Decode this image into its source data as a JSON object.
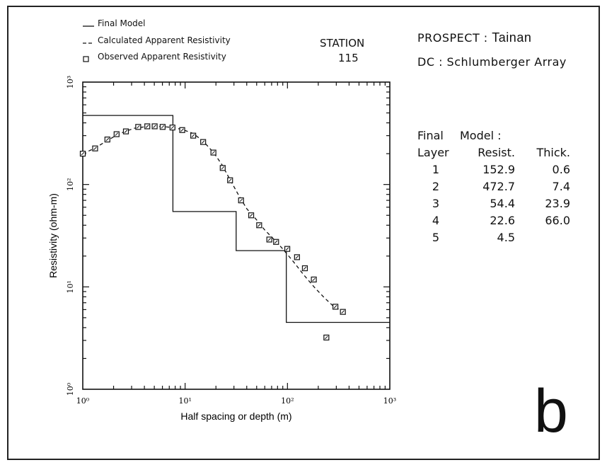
{
  "legend": [
    {
      "symbol": "solid-line",
      "label": "Final Model"
    },
    {
      "symbol": "dashed-line",
      "label": "Calculated Apparent Resistivity"
    },
    {
      "symbol": "square-marker",
      "label": "Observed Apparent Resistivity"
    }
  ],
  "station": {
    "label": "STATION",
    "number": "115"
  },
  "prospect": {
    "label": "PROSPECT :",
    "name": "Tainan"
  },
  "array": "DC : Schlumberger Array",
  "model_table": {
    "caption_left": "Final",
    "caption_right": "Model :",
    "headers": [
      "Layer",
      "Resist.",
      "Thick."
    ],
    "rows": [
      [
        "1",
        "152.9",
        "0.6"
      ],
      [
        "2",
        "472.7",
        "7.4"
      ],
      [
        "3",
        "54.4",
        "23.9"
      ],
      [
        "4",
        "22.6",
        "66.0"
      ],
      [
        "5",
        "4.5",
        ""
      ]
    ]
  },
  "figure_letter": "b",
  "chart_data": {
    "type": "line",
    "xlabel": "Half spacing or depth (m)",
    "ylabel": "Resistivity  (ohm-m)",
    "xscale": "log",
    "yscale": "log",
    "xlim": [
      1,
      1000
    ],
    "ylim": [
      1,
      1000
    ],
    "x_ticks": [
      {
        "value": 1,
        "label": "10⁰"
      },
      {
        "value": 10,
        "label": "10¹"
      },
      {
        "value": 100,
        "label": "10²"
      },
      {
        "value": 1000,
        "label": "10³"
      }
    ],
    "y_ticks": [
      {
        "value": 1,
        "label": "10⁰"
      },
      {
        "value": 10,
        "label": "10¹"
      },
      {
        "value": 100,
        "label": "10²"
      },
      {
        "value": 1000,
        "label": "10³"
      }
    ],
    "grid": false,
    "series": [
      {
        "name": "Final Model",
        "style": "solid-step",
        "x": [
          1,
          7.6,
          7.6,
          31.5,
          31.5,
          97.5,
          97.5,
          1000
        ],
        "y": [
          472.7,
          472.7,
          54.4,
          54.4,
          22.6,
          22.6,
          4.5,
          4.5
        ]
      },
      {
        "name": "Calculated Apparent Resistivity",
        "style": "dashed",
        "x": [
          1,
          1.3,
          1.7,
          2.1,
          2.5,
          3.2,
          4,
          5,
          6,
          7.6,
          9.4,
          12,
          15,
          19,
          23,
          27,
          33,
          40,
          50,
          60,
          74,
          90,
          115,
          145,
          185,
          230,
          280,
          330
        ],
        "y": [
          200,
          225,
          265,
          300,
          325,
          355,
          365,
          370,
          368,
          360,
          345,
          315,
          265,
          205,
          155,
          115,
          80,
          58,
          45,
          36,
          29,
          23.5,
          17.5,
          13,
          9.8,
          7.8,
          6.5,
          5.9
        ]
      },
      {
        "name": "Observed Apparent Resistivity",
        "style": "markers",
        "x": [
          1,
          1.32,
          1.74,
          2.14,
          2.64,
          3.48,
          4.27,
          5.04,
          6.03,
          7.52,
          9.37,
          12,
          15,
          18.9,
          23.3,
          27.5,
          35.2,
          44.2,
          52.9,
          66.5,
          77.4,
          99.6,
          124,
          148,
          181,
          240,
          294,
          348
        ],
        "y": [
          200,
          225,
          275,
          310,
          330,
          365,
          370,
          370,
          365,
          360,
          340,
          300,
          260,
          205,
          145,
          110,
          70,
          50,
          40,
          29,
          27.5,
          23.5,
          19.5,
          15.2,
          11.8,
          3.2,
          6.4,
          5.7
        ]
      }
    ]
  }
}
